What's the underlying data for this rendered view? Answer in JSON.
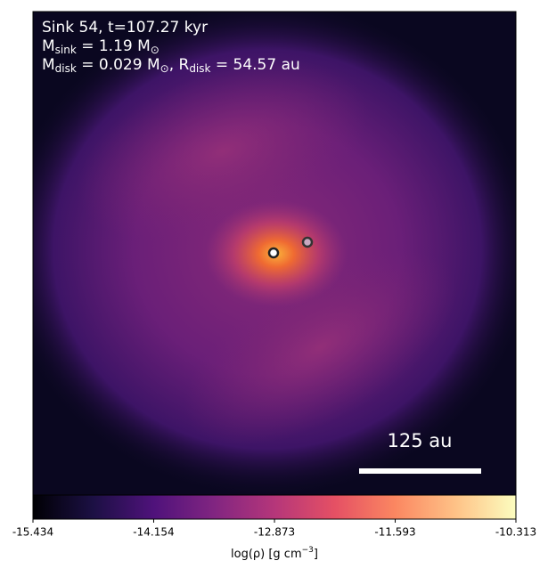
{
  "chart_data": {
    "type": "image",
    "annotations": [
      [
        "Sink 54, t=107.27 kyr"
      ],
      [
        "M",
        "sink",
        " = 1.19 M",
        "⊙"
      ],
      [
        "M",
        "disk",
        " = 0.029 M",
        "⊙",
        ", R",
        "disk",
        " = 54.57 au"
      ]
    ],
    "scale_bar": "125 au",
    "colormap": "magma",
    "colorbar_label": [
      "log(ρ) [g cm",
      "−3",
      "]"
    ],
    "clim": [
      -15.434,
      -10.313
    ],
    "cticks": [
      -15.434,
      -14.154,
      -12.873,
      -11.593,
      -10.313
    ]
  }
}
